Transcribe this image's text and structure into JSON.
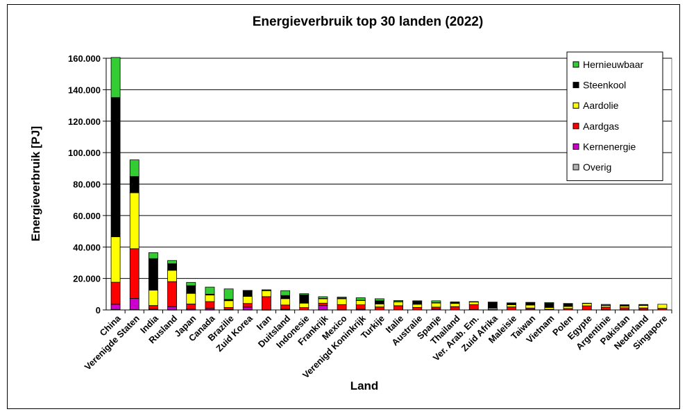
{
  "chart_data": {
    "type": "bar",
    "stacked": true,
    "title": "Energieverbruik top 30 landen (2022)",
    "xlabel": "Land",
    "ylabel": "Energieverbruik [PJ]",
    "ylim": [
      0,
      160000
    ],
    "yticks": [
      0,
      20000,
      40000,
      60000,
      80000,
      100000,
      120000,
      140000,
      160000
    ],
    "ytick_labels": [
      "0",
      "20.000",
      "40.000",
      "60.000",
      "80.000",
      "100.000",
      "120.000",
      "140.000",
      "160.000"
    ],
    "grid": true,
    "legend_position": "top-right",
    "categories": [
      "China",
      "Verenigde Staten",
      "India",
      "Rusland",
      "Japan",
      "Canada",
      "Brazilie",
      "Zuid Korea",
      "Iran",
      "Duitsland",
      "Indonesie",
      "Frankrijk",
      "Mexico",
      "Verenigd Koninkrijk",
      "Turkije",
      "Italie",
      "Australie",
      "Spanje",
      "Thailand",
      "Ver. Arab. Em.",
      "Zuid Afrika",
      "Maleisie",
      "Taiwan",
      "Vietnam",
      "Polen",
      "Egypte",
      "Argentinie",
      "Pakistan",
      "Nederland",
      "Singapore"
    ],
    "series": [
      {
        "name": "Overig",
        "color": "#b3b3b3",
        "values": [
          300,
          200,
          200,
          100,
          100,
          100,
          100,
          100,
          0,
          100,
          0,
          100,
          0,
          100,
          0,
          0,
          0,
          0,
          0,
          0,
          0,
          0,
          0,
          0,
          0,
          0,
          0,
          0,
          0,
          0
        ]
      },
      {
        "name": "Kernenergie",
        "color": "#cc00cc",
        "values": [
          3300,
          7100,
          400,
          2000,
          500,
          900,
          150,
          1700,
          60,
          350,
          0,
          2700,
          100,
          450,
          0,
          0,
          0,
          500,
          0,
          200,
          100,
          0,
          200,
          0,
          0,
          0,
          100,
          100,
          50,
          0
        ]
      },
      {
        "name": "Aardgas",
        "color": "#ff0000",
        "values": [
          14000,
          31600,
          2200,
          15900,
          3200,
          4300,
          1300,
          2300,
          8400,
          2700,
          1500,
          1500,
          3300,
          2700,
          1900,
          2700,
          1600,
          1300,
          2100,
          3200,
          200,
          1900,
          1000,
          400,
          900,
          2600,
          1700,
          1300,
          1200,
          1000
        ]
      },
      {
        "name": "Aardolie",
        "color": "#ffff00",
        "values": [
          28900,
          35600,
          9800,
          7200,
          6700,
          4200,
          4300,
          4500,
          3900,
          4000,
          2800,
          2800,
          3700,
          2800,
          1900,
          2400,
          2000,
          2600,
          2000,
          1700,
          800,
          1400,
          1900,
          1100,
          1300,
          1500,
          1100,
          1000,
          1600,
          2600
        ]
      },
      {
        "name": "Steenkool",
        "color": "#000000",
        "values": [
          88500,
          10300,
          20000,
          4200,
          4900,
          500,
          800,
          3700,
          40,
          2000,
          5300,
          200,
          400,
          100,
          2000,
          200,
          1800,
          200,
          700,
          100,
          3800,
          1100,
          1600,
          2700,
          1800,
          0,
          100,
          700,
          300,
          0
        ]
      },
      {
        "name": "Hernieuwbaar",
        "color": "#33cc33",
        "values": [
          25500,
          10600,
          3800,
          2000,
          2100,
          4500,
          6700,
          100,
          400,
          3100,
          700,
          1100,
          700,
          1600,
          1300,
          700,
          400,
          1200,
          300,
          100,
          100,
          100,
          100,
          500,
          100,
          200,
          500,
          200,
          300,
          0
        ]
      }
    ],
    "legend_order": [
      "Hernieuwbaar",
      "Steenkool",
      "Aardolie",
      "Aardgas",
      "Kernenergie",
      "Overig"
    ]
  }
}
